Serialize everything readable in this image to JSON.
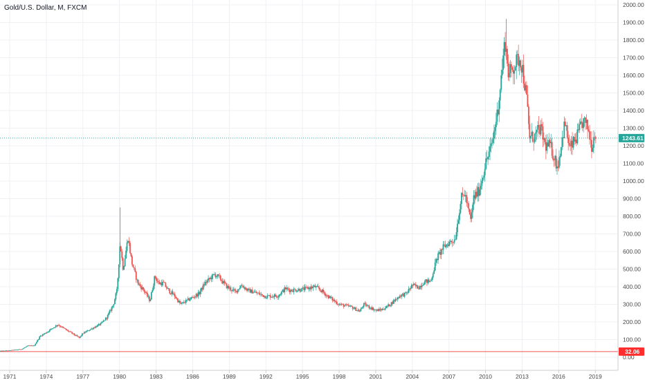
{
  "header": {
    "title": "Gold/U.S. Dollar, M, FXCM"
  },
  "colors": {
    "up": "#26a69a",
    "down": "#ef5350",
    "last_price_tag": "#26a69a",
    "baseline_line": "#ef5350",
    "baseline_tag": "#ff2e2e",
    "grid": "#eef0f3",
    "axis_line": "#c9ccd1",
    "last_price_line": "#26a69a"
  },
  "chart_data": {
    "type": "candlestick",
    "title": "Gold/U.S. Dollar, M, FXCM",
    "interval": "monthly",
    "x_ticks": [
      "1971",
      "1974",
      "1977",
      "1980",
      "1983",
      "1986",
      "1989",
      "1992",
      "1995",
      "1998",
      "2001",
      "2004",
      "2007",
      "2010",
      "2013",
      "2016",
      "2019"
    ],
    "y_ticks": [
      "0.00",
      "100.00",
      "200.00",
      "300.00",
      "400.00",
      "500.00",
      "600.00",
      "700.00",
      "800.00",
      "900.00",
      "1000.00",
      "1100.00",
      "1200.00",
      "1300.00",
      "1400.00",
      "1500.00",
      "1600.00",
      "1700.00",
      "1800.00",
      "1900.00",
      "2000.00"
    ],
    "ylim": [
      0,
      2000
    ],
    "xlim": [
      1970.25,
      2020.5
    ],
    "grid": true,
    "price_axis_side": "right",
    "last_price": "1243.61",
    "last_price_value": 1243.61,
    "baseline_value": 32.06,
    "baseline_label": "32.06",
    "anchors": [
      [
        1970.2,
        35
      ],
      [
        1971.0,
        38
      ],
      [
        1972.0,
        46
      ],
      [
        1972.5,
        65
      ],
      [
        1973.0,
        65
      ],
      [
        1973.5,
        120
      ],
      [
        1974.0,
        140
      ],
      [
        1974.5,
        165
      ],
      [
        1974.95,
        185
      ],
      [
        1975.5,
        160
      ],
      [
        1976.0,
        140
      ],
      [
        1976.7,
        110
      ],
      [
        1977.0,
        135
      ],
      [
        1977.8,
        165
      ],
      [
        1978.5,
        190
      ],
      [
        1979.0,
        230
      ],
      [
        1979.5,
        300
      ],
      [
        1979.8,
        380
      ],
      [
        1980.05,
        650
      ],
      [
        1980.3,
        500
      ],
      [
        1980.7,
        680
      ],
      [
        1981.0,
        540
      ],
      [
        1981.5,
        420
      ],
      [
        1982.0,
        380
      ],
      [
        1982.5,
        320
      ],
      [
        1982.9,
        460
      ],
      [
        1983.2,
        420
      ],
      [
        1983.6,
        420
      ],
      [
        1984.0,
        380
      ],
      [
        1984.5,
        350
      ],
      [
        1985.0,
        300
      ],
      [
        1985.5,
        320
      ],
      [
        1986.0,
        340
      ],
      [
        1986.5,
        360
      ],
      [
        1987.0,
        420
      ],
      [
        1987.8,
        470
      ],
      [
        1988.2,
        450
      ],
      [
        1988.8,
        400
      ],
      [
        1989.5,
        370
      ],
      [
        1990.0,
        410
      ],
      [
        1990.5,
        380
      ],
      [
        1991.0,
        370
      ],
      [
        1992.0,
        345
      ],
      [
        1993.0,
        350
      ],
      [
        1993.6,
        390
      ],
      [
        1994.0,
        380
      ],
      [
        1995.0,
        385
      ],
      [
        1996.0,
        400
      ],
      [
        1996.5,
        380
      ],
      [
        1997.0,
        350
      ],
      [
        1997.5,
        325
      ],
      [
        1998.0,
        300
      ],
      [
        1999.0,
        285
      ],
      [
        1999.7,
        260
      ],
      [
        2000.0,
        300
      ],
      [
        2000.5,
        285
      ],
      [
        2001.0,
        265
      ],
      [
        2001.5,
        270
      ],
      [
        2002.0,
        290
      ],
      [
        2002.5,
        320
      ],
      [
        2003.0,
        350
      ],
      [
        2003.5,
        360
      ],
      [
        2004.0,
        410
      ],
      [
        2004.5,
        395
      ],
      [
        2005.0,
        430
      ],
      [
        2005.5,
        430
      ],
      [
        2006.0,
        560
      ],
      [
        2006.5,
        620
      ],
      [
        2007.0,
        650
      ],
      [
        2007.5,
        670
      ],
      [
        2008.0,
        900
      ],
      [
        2008.3,
        930
      ],
      [
        2008.8,
        770
      ],
      [
        2009.0,
        900
      ],
      [
        2009.5,
        950
      ],
      [
        2010.0,
        1100
      ],
      [
        2010.5,
        1200
      ],
      [
        2011.0,
        1400
      ],
      [
        2011.6,
        1800
      ],
      [
        2011.9,
        1600
      ],
      [
        2012.3,
        1650
      ],
      [
        2012.8,
        1700
      ],
      [
        2013.0,
        1650
      ],
      [
        2013.4,
        1450
      ],
      [
        2013.6,
        1250
      ],
      [
        2014.0,
        1250
      ],
      [
        2014.5,
        1300
      ],
      [
        2014.9,
        1200
      ],
      [
        2015.3,
        1200
      ],
      [
        2015.9,
        1080
      ],
      [
        2016.5,
        1330
      ],
      [
        2016.9,
        1180
      ],
      [
        2017.5,
        1250
      ],
      [
        2018.0,
        1340
      ],
      [
        2018.4,
        1300
      ],
      [
        2018.7,
        1200
      ],
      [
        2019.0,
        1290
      ],
      [
        2019.1,
        1243.61
      ]
    ]
  }
}
